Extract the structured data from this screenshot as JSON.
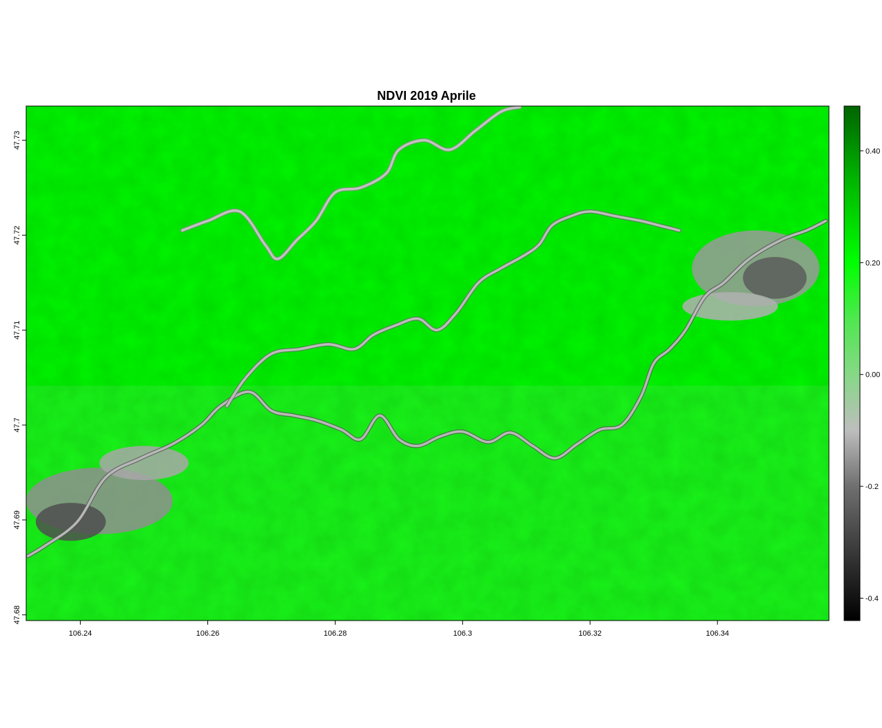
{
  "figure": {
    "title": "NDVI 2019 Aprile"
  },
  "chart_data": {
    "type": "heatmap",
    "title": "NDVI 2019 Aprile",
    "xlabel": "",
    "ylabel": "",
    "xlim": [
      106.2315,
      106.3575
    ],
    "ylim": [
      47.6794,
      47.7336
    ],
    "x_ticks": [
      {
        "value": 106.24,
        "label": "106.24"
      },
      {
        "value": 106.26,
        "label": "106.26"
      },
      {
        "value": 106.28,
        "label": "106.28"
      },
      {
        "value": 106.3,
        "label": "106.3"
      },
      {
        "value": 106.32,
        "label": "106.32"
      },
      {
        "value": 106.34,
        "label": "106.34"
      }
    ],
    "y_ticks": [
      {
        "value": 47.68,
        "label": "47.68"
      },
      {
        "value": 47.69,
        "label": "47.69"
      },
      {
        "value": 47.7,
        "label": "47.7"
      },
      {
        "value": 47.71,
        "label": "47.71"
      },
      {
        "value": 47.72,
        "label": "47.72"
      },
      {
        "value": 47.73,
        "label": "47.73"
      }
    ],
    "legend": {
      "placement": "right",
      "range": [
        -0.44,
        0.48
      ],
      "ticks": [
        {
          "value": 0.4,
          "label": "0.40"
        },
        {
          "value": 0.2,
          "label": "0.20"
        },
        {
          "value": 0.0,
          "label": "0.00"
        },
        {
          "value": -0.2,
          "label": "-0.2"
        },
        {
          "value": -0.4,
          "label": "-0.4"
        }
      ],
      "color_stops": [
        {
          "value": -0.44,
          "color": "#000000"
        },
        {
          "value": -0.2,
          "color": "#6f6f6f"
        },
        {
          "value": -0.1,
          "color": "#bdbdbd"
        },
        {
          "value": 0.0,
          "color": "#86d886"
        },
        {
          "value": 0.1,
          "color": "#4ee84e"
        },
        {
          "value": 0.2,
          "color": "#00ff00"
        },
        {
          "value": 0.35,
          "color": "#00b400"
        },
        {
          "value": 0.48,
          "color": "#006400"
        }
      ]
    },
    "features": [
      {
        "name": "main-river",
        "color": "#b8b8b8",
        "dark_color": "#555555",
        "path": [
          [
            106.2318,
            47.6862
          ],
          [
            106.2345,
            47.6873
          ],
          [
            106.2395,
            47.6898
          ],
          [
            106.244,
            47.6945
          ],
          [
            106.2495,
            47.6965
          ],
          [
            106.2545,
            47.698
          ],
          [
            106.259,
            47.7
          ],
          [
            106.262,
            47.702
          ],
          [
            106.2665,
            47.7035
          ],
          [
            106.27,
            47.7015
          ],
          [
            106.2735,
            47.701
          ],
          [
            106.277,
            47.7005
          ],
          [
            106.281,
            47.6995
          ],
          [
            106.284,
            47.6985
          ],
          [
            106.287,
            47.701
          ],
          [
            106.29,
            47.6985
          ],
          [
            106.293,
            47.6978
          ],
          [
            106.2965,
            47.6988
          ],
          [
            106.3,
            47.6993
          ],
          [
            106.304,
            47.6982
          ],
          [
            106.3075,
            47.6992
          ],
          [
            106.311,
            47.6978
          ],
          [
            106.3145,
            47.6965
          ],
          [
            106.318,
            47.698
          ],
          [
            106.3215,
            47.6995
          ],
          [
            106.325,
            47.7
          ],
          [
            106.328,
            47.703
          ],
          [
            106.33,
            47.7065
          ],
          [
            106.3325,
            47.708
          ],
          [
            106.335,
            47.71
          ],
          [
            106.338,
            47.7135
          ],
          [
            106.341,
            47.715
          ],
          [
            106.345,
            47.7175
          ],
          [
            106.35,
            47.7195
          ],
          [
            106.354,
            47.7205
          ],
          [
            106.357,
            47.7215
          ]
        ]
      },
      {
        "name": "north-channel",
        "color": "#bcbcbc",
        "dark_color": "#6a6a6a",
        "path": [
          [
            106.263,
            47.702
          ],
          [
            106.266,
            47.705
          ],
          [
            106.27,
            47.7075
          ],
          [
            106.2745,
            47.708
          ],
          [
            106.279,
            47.7085
          ],
          [
            106.283,
            47.708
          ],
          [
            106.286,
            47.7095
          ],
          [
            106.2895,
            47.7105
          ],
          [
            106.293,
            47.7112
          ],
          [
            106.296,
            47.71
          ],
          [
            106.299,
            47.7118
          ],
          [
            106.3025,
            47.715
          ],
          [
            106.306,
            47.7165
          ],
          [
            106.3095,
            47.7178
          ],
          [
            106.312,
            47.719
          ],
          [
            106.314,
            47.721
          ],
          [
            106.317,
            47.722
          ],
          [
            106.32,
            47.7225
          ],
          [
            106.324,
            47.722
          ],
          [
            106.328,
            47.7215
          ],
          [
            106.331,
            47.721
          ],
          [
            106.334,
            47.7205
          ]
        ]
      },
      {
        "name": "northwest-channel",
        "color": "#c2c2c2",
        "dark_color": "#8a8a8a",
        "path": [
          [
            106.256,
            47.7205
          ],
          [
            106.26,
            47.7215
          ],
          [
            106.265,
            47.7225
          ],
          [
            106.269,
            47.719
          ],
          [
            106.271,
            47.7175
          ],
          [
            106.274,
            47.7195
          ],
          [
            106.277,
            47.7215
          ],
          [
            106.28,
            47.7245
          ],
          [
            106.284,
            47.725
          ],
          [
            106.288,
            47.7265
          ],
          [
            106.29,
            47.729
          ],
          [
            106.294,
            47.73
          ],
          [
            106.298,
            47.729
          ],
          [
            106.302,
            47.731
          ],
          [
            106.306,
            47.733
          ],
          [
            106.309,
            47.7335
          ]
        ]
      }
    ],
    "patches": [
      {
        "name": "west-floodplain",
        "x": 106.243,
        "y": 47.692,
        "rx": 0.0115,
        "ry": 0.0035,
        "color": "#8f8f8f"
      },
      {
        "name": "west-floodplain-core",
        "x": 106.2385,
        "y": 47.6898,
        "rx": 0.0055,
        "ry": 0.002,
        "color": "#4f4f4f"
      },
      {
        "name": "west-floodplain-upper",
        "x": 106.25,
        "y": 47.696,
        "rx": 0.007,
        "ry": 0.0018,
        "color": "#a8a8a8"
      },
      {
        "name": "east-floodplain",
        "x": 106.346,
        "y": 47.7165,
        "rx": 0.01,
        "ry": 0.004,
        "color": "#9a9a9a"
      },
      {
        "name": "east-floodplain-core",
        "x": 106.349,
        "y": 47.7155,
        "rx": 0.005,
        "ry": 0.0022,
        "color": "#5c5c5c"
      },
      {
        "name": "east-floodplain-lower",
        "x": 106.342,
        "y": 47.7125,
        "rx": 0.0075,
        "ry": 0.0015,
        "color": "#b0b0b0"
      }
    ]
  }
}
